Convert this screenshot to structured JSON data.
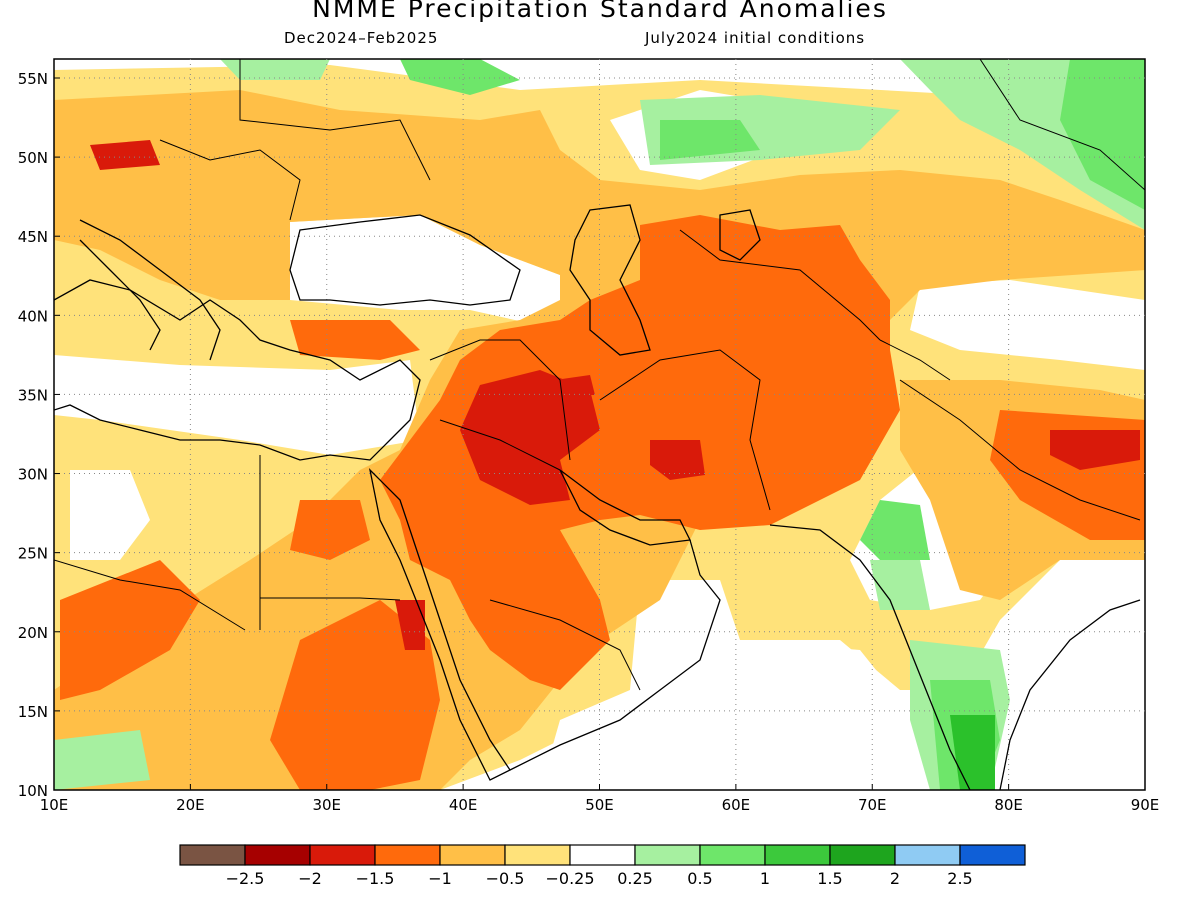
{
  "header": {
    "title": "NMME Precipitation Standard Anomalies",
    "season": "Dec2024–Feb2025",
    "init": "July2024 initial conditions"
  },
  "map": {
    "lat_labels": [
      "55N",
      "50N",
      "45N",
      "40N",
      "35N",
      "30N",
      "25N",
      "20N",
      "15N",
      "10N"
    ],
    "lon_labels": [
      "10E",
      "20E",
      "30E",
      "40E",
      "50E",
      "60E",
      "70E",
      "80E",
      "90E"
    ],
    "colors": {
      "lt_yellow": "#ffe27a",
      "lt_orange": "#ffbf47",
      "orange": "#ff6a0c",
      "red": "#d91a0a",
      "dk_red": "#a60000",
      "lt_green": "#a6f0a0",
      "green": "#6ee66a",
      "dk_green": "#2bc12b"
    }
  },
  "colorbar": {
    "colors": [
      "#7a5443",
      "#a60000",
      "#d91a0a",
      "#ff6a0c",
      "#ffbf47",
      "#ffe27a",
      "#ffffff",
      "#a6f0a0",
      "#6ee66a",
      "#3cc93c",
      "#1ea51e",
      "#8fcbf3",
      "#0f5fd7"
    ],
    "labels": [
      "−2.5",
      "−2",
      "−1.5",
      "−1",
      "−0.5",
      "−0.25",
      "0.25",
      "0.5",
      "1",
      "1.5",
      "2",
      "2.5"
    ]
  }
}
